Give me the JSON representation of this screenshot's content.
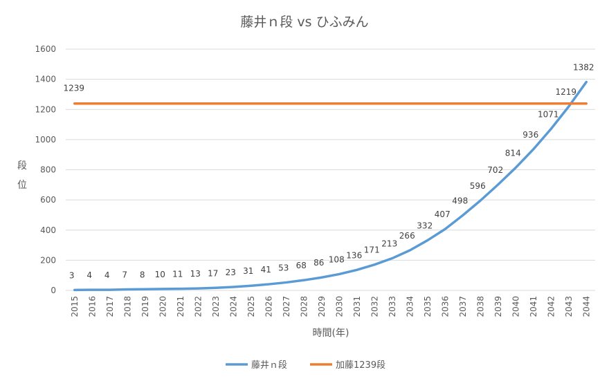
{
  "chart_data": {
    "type": "line",
    "title": "藤井ｎ段 vs ひふみん",
    "xlabel": "時間(年)",
    "ylabel": "段位",
    "ylim": [
      0,
      1600
    ],
    "yticks": [
      0,
      200,
      400,
      600,
      800,
      1000,
      1200,
      1400,
      1600
    ],
    "grid": true,
    "legend_position": "bottom",
    "categories": [
      "2015",
      "2016",
      "2017",
      "2018",
      "2019",
      "2020",
      "2021",
      "2022",
      "2023",
      "2024",
      "2025",
      "2026",
      "2027",
      "2028",
      "2029",
      "2030",
      "2031",
      "2032",
      "2033",
      "2034",
      "2035",
      "2036",
      "2037",
      "2038",
      "2039",
      "2040",
      "2041",
      "2042",
      "2043",
      "2044"
    ],
    "series": [
      {
        "name": "藤井ｎ段",
        "color": "#5b9bd5",
        "values": [
          3,
          4,
          4,
          7,
          8,
          10,
          11,
          13,
          17,
          23,
          31,
          41,
          53,
          68,
          86,
          108,
          136,
          171,
          213,
          266,
          332,
          407,
          498,
          596,
          702,
          814,
          936,
          1071,
          1219,
          1382
        ],
        "show_labels": "all"
      },
      {
        "name": "加藤1239段",
        "color": "#ed7d31",
        "values": [
          1239,
          1239,
          1239,
          1239,
          1239,
          1239,
          1239,
          1239,
          1239,
          1239,
          1239,
          1239,
          1239,
          1239,
          1239,
          1239,
          1239,
          1239,
          1239,
          1239,
          1239,
          1239,
          1239,
          1239,
          1239,
          1239,
          1239,
          1239,
          1239,
          1239
        ],
        "show_labels": "first"
      }
    ]
  }
}
